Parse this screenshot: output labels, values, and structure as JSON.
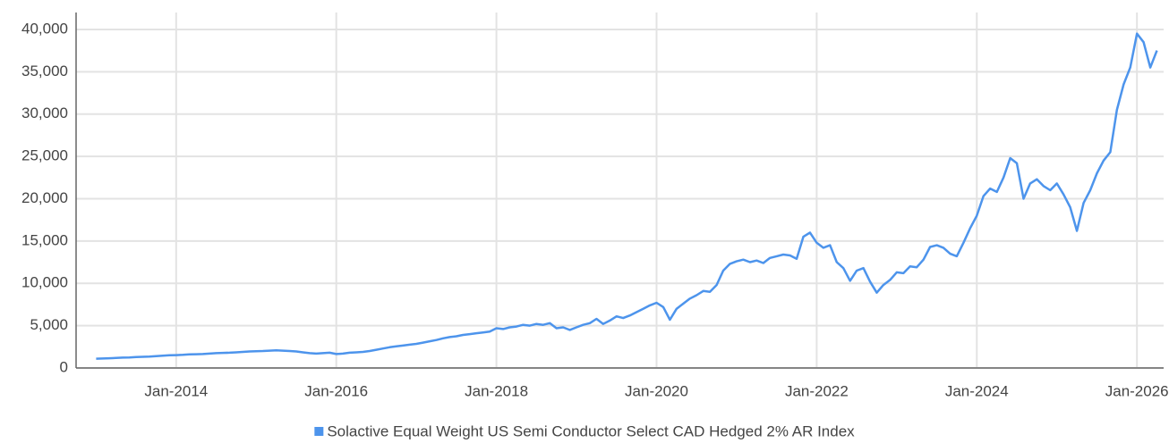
{
  "chart_data": {
    "type": "line",
    "x": [
      "2013-01",
      "2013-02",
      "2013-03",
      "2013-04",
      "2013-05",
      "2013-06",
      "2013-07",
      "2013-08",
      "2013-09",
      "2013-10",
      "2013-11",
      "2013-12",
      "2014-01",
      "2014-02",
      "2014-03",
      "2014-04",
      "2014-05",
      "2014-06",
      "2014-07",
      "2014-08",
      "2014-09",
      "2014-10",
      "2014-11",
      "2014-12",
      "2015-01",
      "2015-02",
      "2015-03",
      "2015-04",
      "2015-05",
      "2015-06",
      "2015-07",
      "2015-08",
      "2015-09",
      "2015-10",
      "2015-11",
      "2015-12",
      "2016-01",
      "2016-02",
      "2016-03",
      "2016-04",
      "2016-05",
      "2016-06",
      "2016-07",
      "2016-08",
      "2016-09",
      "2016-10",
      "2016-11",
      "2016-12",
      "2017-01",
      "2017-02",
      "2017-03",
      "2017-04",
      "2017-05",
      "2017-06",
      "2017-07",
      "2017-08",
      "2017-09",
      "2017-10",
      "2017-11",
      "2017-12",
      "2018-01",
      "2018-02",
      "2018-03",
      "2018-04",
      "2018-05",
      "2018-06",
      "2018-07",
      "2018-08",
      "2018-09",
      "2018-10",
      "2018-11",
      "2018-12",
      "2019-01",
      "2019-02",
      "2019-03",
      "2019-04",
      "2019-05",
      "2019-06",
      "2019-07",
      "2019-08",
      "2019-09",
      "2019-10",
      "2019-11",
      "2019-12",
      "2020-01",
      "2020-02",
      "2020-03",
      "2020-04",
      "2020-05",
      "2020-06",
      "2020-07",
      "2020-08",
      "2020-09",
      "2020-10",
      "2020-11",
      "2020-12",
      "2021-01",
      "2021-02",
      "2021-03",
      "2021-04",
      "2021-05",
      "2021-06",
      "2021-07",
      "2021-08",
      "2021-09",
      "2021-10",
      "2021-11",
      "2021-12",
      "2022-01",
      "2022-02",
      "2022-03",
      "2022-04",
      "2022-05",
      "2022-06",
      "2022-07",
      "2022-08",
      "2022-09",
      "2022-10",
      "2022-11",
      "2022-12",
      "2023-01",
      "2023-02",
      "2023-03",
      "2023-04",
      "2023-05",
      "2023-06",
      "2023-07",
      "2023-08",
      "2023-09",
      "2023-10",
      "2023-11",
      "2023-12",
      "2024-01",
      "2024-02",
      "2024-03",
      "2024-04",
      "2024-05",
      "2024-06",
      "2024-07",
      "2024-08",
      "2024-09",
      "2024-10",
      "2024-11",
      "2024-12",
      "2025-01",
      "2025-02",
      "2025-03",
      "2025-04",
      "2025-05",
      "2025-06",
      "2025-07",
      "2025-08",
      "2025-09",
      "2025-10",
      "2025-11",
      "2025-12",
      "2026-01",
      "2026-02",
      "2026-03",
      "2026-04"
    ],
    "series": [
      {
        "name": "Solactive Equal Weight US Semi Conductor Select CAD Hedged 2% AR Index",
        "color": "#4d94ec",
        "values": [
          1100,
          1120,
          1150,
          1180,
          1220,
          1250,
          1290,
          1320,
          1350,
          1400,
          1450,
          1500,
          1520,
          1550,
          1600,
          1620,
          1650,
          1700,
          1750,
          1780,
          1800,
          1850,
          1900,
          1950,
          1980,
          2000,
          2050,
          2080,
          2050,
          2000,
          1950,
          1850,
          1750,
          1700,
          1750,
          1800,
          1650,
          1700,
          1800,
          1850,
          1900,
          2000,
          2150,
          2300,
          2450,
          2550,
          2650,
          2750,
          2850,
          3000,
          3150,
          3300,
          3500,
          3650,
          3750,
          3900,
          4000,
          4100,
          4200,
          4300,
          4700,
          4600,
          4800,
          4900,
          5100,
          5000,
          5200,
          5100,
          5300,
          4700,
          4800,
          4500,
          4800,
          5100,
          5300,
          5800,
          5200,
          5600,
          6100,
          5900,
          6200,
          6600,
          7000,
          7400,
          7700,
          7200,
          5700,
          7000,
          7600,
          8200,
          8600,
          9100,
          9000,
          9800,
          11500,
          12300,
          12600,
          12800,
          12500,
          12700,
          12400,
          13000,
          13200,
          13400,
          13300,
          12900,
          15500,
          16000,
          14800,
          14200,
          14500,
          12500,
          11800,
          10300,
          11500,
          11800,
          10200,
          8900,
          9800,
          10400,
          11300,
          11200,
          12000,
          11900,
          12800,
          14300,
          14500,
          14200,
          13500,
          13200,
          14800,
          16500,
          18000,
          20300,
          21200,
          20800,
          22500,
          24800,
          24200,
          20000,
          21800,
          22300,
          21500,
          21000,
          21800,
          20500,
          19000,
          16200,
          19500,
          21000,
          23000,
          24500,
          25500,
          30500,
          33500,
          35500,
          39500,
          38500,
          35500,
          37500
        ]
      }
    ],
    "xlim": [
      "2012-10",
      "2026-05"
    ],
    "xticks": [
      {
        "value": "2014-01",
        "label": "Jan-2014"
      },
      {
        "value": "2016-01",
        "label": "Jan-2016"
      },
      {
        "value": "2018-01",
        "label": "Jan-2018"
      },
      {
        "value": "2020-01",
        "label": "Jan-2020"
      },
      {
        "value": "2022-01",
        "label": "Jan-2022"
      },
      {
        "value": "2024-01",
        "label": "Jan-2024"
      },
      {
        "value": "2026-01",
        "label": "Jan-2026"
      }
    ],
    "ylim": [
      0,
      42000
    ],
    "yticks": [
      0,
      {
        "value": 5000,
        "label": "5,000"
      },
      {
        "value": 10000,
        "label": "10,000"
      },
      {
        "value": 15000,
        "label": "15,000"
      },
      {
        "value": 20000,
        "label": "20,000"
      },
      {
        "value": 25000,
        "label": "25,000"
      },
      {
        "value": 30000,
        "label": "30,000"
      },
      {
        "value": 35000,
        "label": "35,000"
      },
      {
        "value": 40000,
        "label": "40,000"
      }
    ],
    "grid": true,
    "legend": "bottom"
  }
}
